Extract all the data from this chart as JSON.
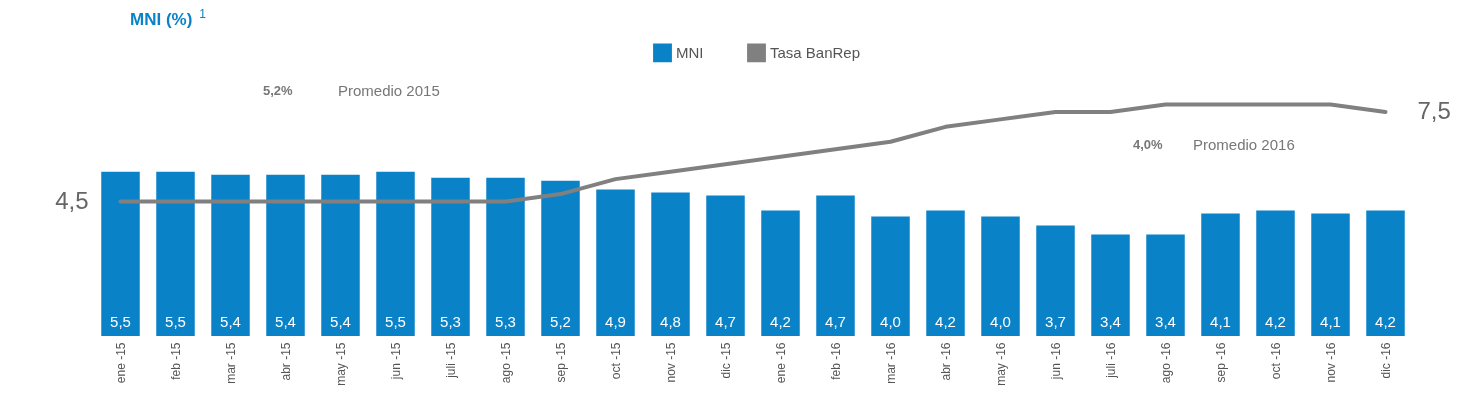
{
  "chart_data": {
    "type": "bar",
    "title": "MNI (%)$^{1}$",
    "categories": [
      "ene -15",
      "feb -15",
      "mar -15",
      "abr -15",
      "may -15",
      "jun -15",
      "juli -15",
      "ago -15",
      "sep -15",
      "oct -15",
      "nov -15",
      "dic -15",
      "ene -16",
      "feb -16",
      "mar -16",
      "abr -16",
      "may -16",
      "jun -16",
      "juli -16",
      "ago -16",
      "sep -16",
      "oct -16",
      "nov -16",
      "dic -16"
    ],
    "series": [
      {
        "name": "MNI",
        "color": "#0a82c8",
        "values": [
          5.5,
          5.5,
          5.4,
          5.4,
          5.4,
          5.5,
          5.3,
          5.3,
          5.2,
          4.9,
          4.8,
          4.7,
          4.2,
          4.7,
          4.0,
          4.2,
          4.0,
          3.7,
          3.4,
          3.4,
          4.1,
          4.2,
          4.1,
          4.2
        ],
        "value_labels": [
          "5,5",
          "5,5",
          "5,4",
          "5,4",
          "5,4",
          "5,5",
          "5,3",
          "5,3",
          "5,2",
          "4,9",
          "4,8",
          "4,7",
          "4,2",
          "4,7",
          "4,0",
          "4,2",
          "4,0",
          "3,7",
          "3,4",
          "3,4",
          "4,1",
          "4,2",
          "4,1",
          "4,2"
        ]
      },
      {
        "name": "Tasa BanRep",
        "type": "line",
        "color": "#808080",
        "values": [
          4.5,
          4.5,
          4.5,
          4.5,
          4.5,
          4.5,
          4.5,
          4.5,
          4.75,
          5.25,
          5.5,
          5.75,
          6.0,
          6.25,
          6.5,
          7.0,
          7.25,
          7.5,
          7.5,
          7.75,
          7.75,
          7.75,
          7.75,
          7.5
        ],
        "value_labels": [
          "4,5",
          null,
          null,
          null,
          null,
          null,
          null,
          null,
          null,
          null,
          null,
          null,
          null,
          null,
          null,
          null,
          null,
          null,
          null,
          null,
          null,
          null,
          null,
          "7,5"
        ]
      }
    ],
    "tick_labels": "x",
    "grid": false,
    "legend": "top",
    "marker": "none",
    "line_style": "solid",
    "annotations": [
      "5,2%",
      "Promedio 2015",
      "4,0%",
      "Promedio 2016"
    ]
  }
}
